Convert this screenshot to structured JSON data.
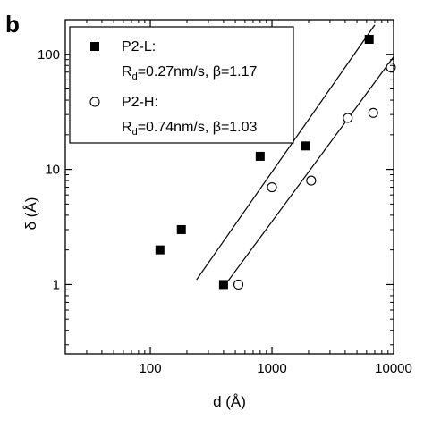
{
  "panel_label": "b",
  "chart_data": {
    "type": "scatter",
    "xscale": "log",
    "yscale": "log",
    "xlim": [
      20,
      10000
    ],
    "ylim": [
      0.25,
      200
    ],
    "xlabel": "d (Å)",
    "ylabel": "δ (Å)",
    "xticks": [
      {
        "value": 100,
        "label": "100"
      },
      {
        "value": 1000,
        "label": "1000"
      },
      {
        "value": 10000,
        "label": "10000"
      }
    ],
    "yticks": [
      {
        "value": 1,
        "label": "1"
      },
      {
        "value": 10,
        "label": "10"
      },
      {
        "value": 100,
        "label": "100"
      }
    ],
    "legend_position": "top-left",
    "series": [
      {
        "name": "P2-L:",
        "params": "R<sub>d</sub>=0.27nm/s, β=1.17",
        "params_text": "Rd=0.27nm/s, β=1.17",
        "marker": "filled-square",
        "points": [
          {
            "x": 120,
            "y": 2
          },
          {
            "x": 180,
            "y": 3
          },
          {
            "x": 400,
            "y": 1
          },
          {
            "x": 800,
            "y": 13
          },
          {
            "x": 1900,
            "y": 16
          },
          {
            "x": 6300,
            "y": 135
          }
        ],
        "fit": [
          {
            "x": 240,
            "y": 1.1
          },
          {
            "x": 7000,
            "y": 180
          }
        ]
      },
      {
        "name": "P2-H:",
        "params": "R<sub>d</sub>=0.74nm/s, β=1.03",
        "params_text": "Rd=0.74nm/s, β=1.03",
        "marker": "open-circle",
        "points": [
          {
            "x": 530,
            "y": 1
          },
          {
            "x": 1000,
            "y": 7
          },
          {
            "x": 2100,
            "y": 8
          },
          {
            "x": 4200,
            "y": 28
          },
          {
            "x": 6800,
            "y": 31
          },
          {
            "x": 9500,
            "y": 77
          }
        ],
        "fit": [
          {
            "x": 400,
            "y": 0.95
          },
          {
            "x": 10000,
            "y": 95
          }
        ]
      }
    ]
  }
}
